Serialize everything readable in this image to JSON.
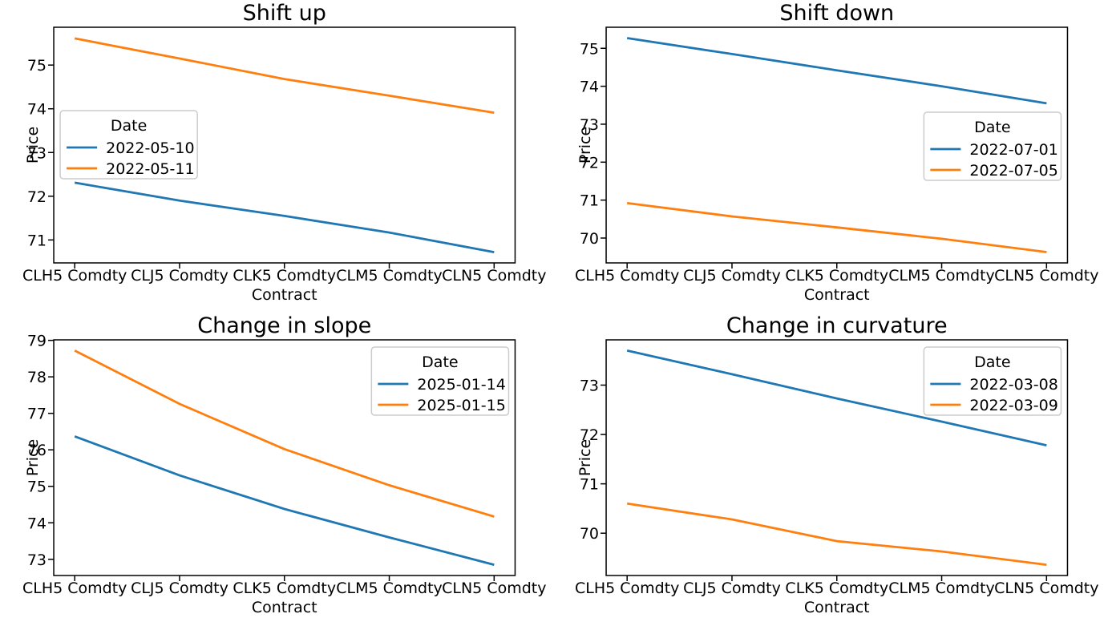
{
  "figure": {
    "background": "#ffffff",
    "series_colors": [
      "#1f77b4",
      "#ff7f0e"
    ],
    "text_color": "#000000",
    "legend_border_color": "#cccccc"
  },
  "chart_data": [
    {
      "type": "line",
      "title": "Shift up",
      "xlabel": "Contract",
      "ylabel": "Price",
      "grid": false,
      "categories": [
        "CLH5 Comdty",
        "CLJ5 Comdty",
        "CLK5 Comdty",
        "CLM5 Comdty",
        "CLN5 Comdty"
      ],
      "yticks": [
        71,
        72,
        73,
        74,
        75
      ],
      "ylim": [
        70.475,
        75.865
      ],
      "legend_title": "Date",
      "legend_position": "center left",
      "series": [
        {
          "name": "2022-05-10",
          "color": "#1f77b4",
          "values": [
            72.31,
            71.9,
            71.55,
            71.17,
            70.72
          ]
        },
        {
          "name": "2022-05-11",
          "color": "#ff7f0e",
          "values": [
            75.61,
            75.15,
            74.68,
            74.3,
            73.91
          ]
        }
      ]
    },
    {
      "type": "line",
      "title": "Shift down",
      "xlabel": "Contract",
      "ylabel": "Price",
      "grid": false,
      "categories": [
        "CLH5 Comdty",
        "CLJ5 Comdty",
        "CLK5 Comdty",
        "CLM5 Comdty",
        "CLN5 Comdty"
      ],
      "yticks": [
        70,
        71,
        72,
        73,
        74,
        75
      ],
      "ylim": [
        69.345,
        75.555
      ],
      "legend_title": "Date",
      "legend_position": "center right",
      "series": [
        {
          "name": "2022-07-01",
          "color": "#1f77b4",
          "values": [
            75.27,
            74.85,
            74.42,
            74.0,
            73.55
          ]
        },
        {
          "name": "2022-07-05",
          "color": "#ff7f0e",
          "values": [
            70.92,
            70.57,
            70.28,
            69.98,
            69.63
          ]
        }
      ]
    },
    {
      "type": "line",
      "title": "Change in slope",
      "xlabel": "Contract",
      "ylabel": "Price",
      "grid": false,
      "categories": [
        "CLH5 Comdty",
        "CLJ5 Comdty",
        "CLK5 Comdty",
        "CLM5 Comdty",
        "CLN5 Comdty"
      ],
      "yticks": [
        73,
        74,
        75,
        76,
        77,
        78,
        79
      ],
      "ylim": [
        72.556,
        79.014
      ],
      "legend_title": "Date",
      "legend_position": "upper right",
      "series": [
        {
          "name": "2025-01-14",
          "color": "#1f77b4",
          "values": [
            76.37,
            75.3,
            74.38,
            73.6,
            72.85
          ]
        },
        {
          "name": "2025-01-15",
          "color": "#ff7f0e",
          "values": [
            78.72,
            77.26,
            76.02,
            75.03,
            74.17
          ]
        }
      ]
    },
    {
      "type": "line",
      "title": "Change in curvature",
      "xlabel": "Contract",
      "ylabel": "Price",
      "grid": false,
      "categories": [
        "CLH5 Comdty",
        "CLJ5 Comdty",
        "CLK5 Comdty",
        "CLM5 Comdty",
        "CLN5 Comdty"
      ],
      "yticks": [
        70,
        71,
        72,
        73
      ],
      "ylim": [
        69.143,
        73.917
      ],
      "legend_title": "Date",
      "legend_position": "upper right",
      "series": [
        {
          "name": "2022-03-08",
          "color": "#1f77b4",
          "values": [
            73.7,
            73.22,
            72.73,
            72.26,
            71.78
          ]
        },
        {
          "name": "2022-03-09",
          "color": "#ff7f0e",
          "values": [
            70.6,
            70.28,
            69.84,
            69.63,
            69.36
          ]
        }
      ]
    }
  ]
}
